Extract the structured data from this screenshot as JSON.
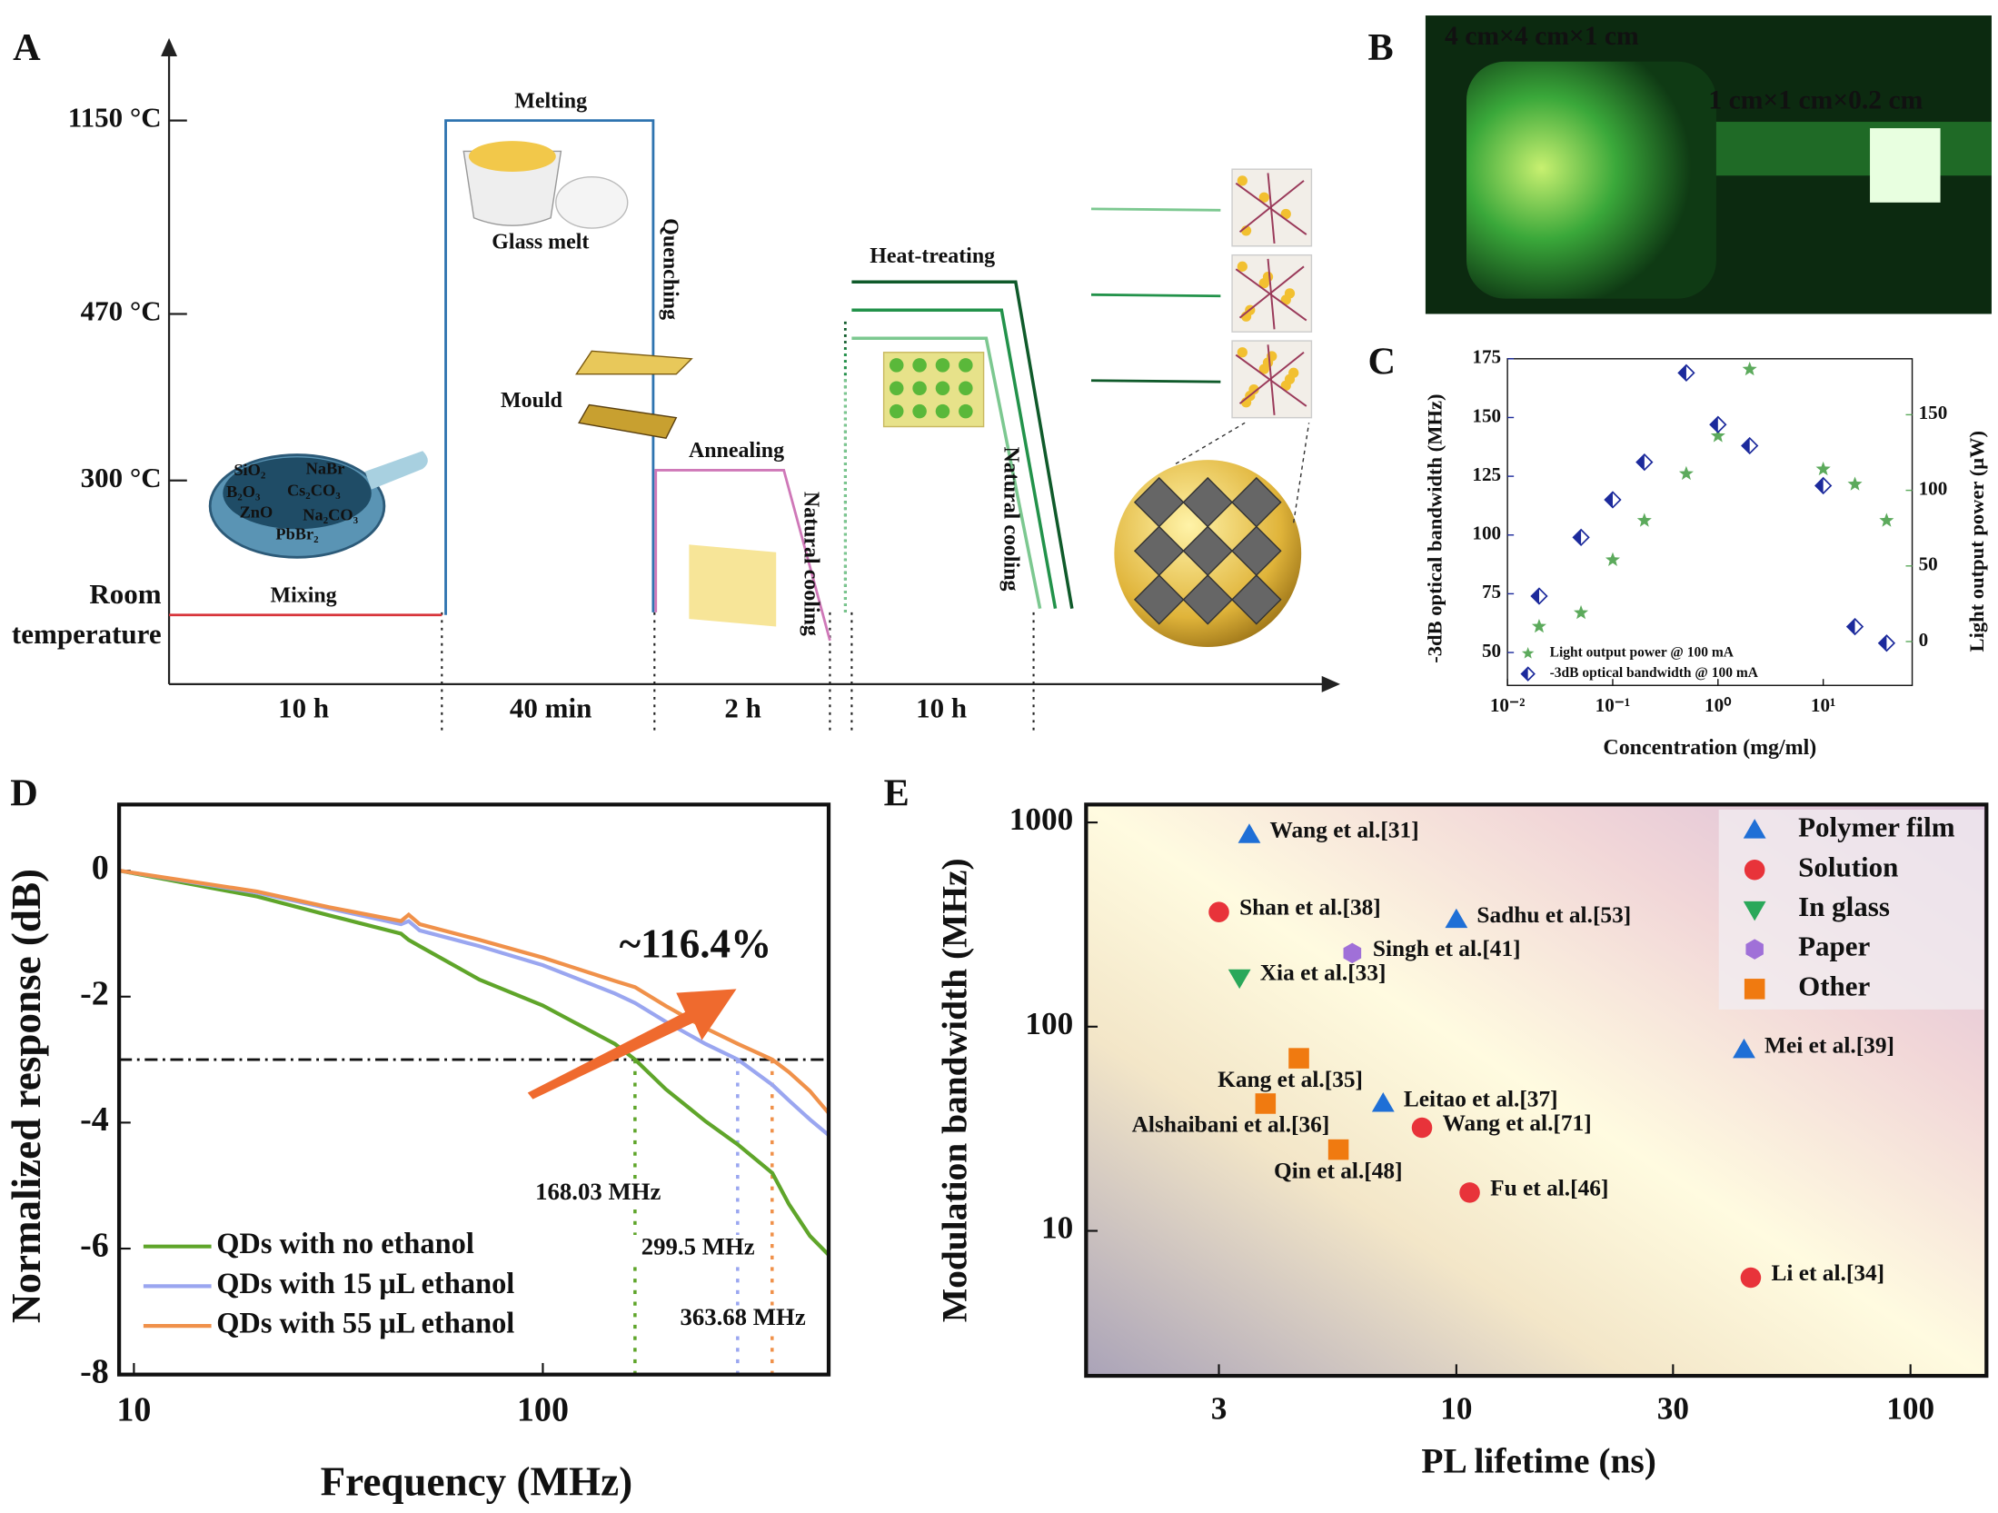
{
  "panel_a": {
    "label": "A",
    "temperatures": [
      "1150 °C",
      "470 °C",
      "300 °C"
    ],
    "room_temperature": [
      "Room",
      "temperature"
    ],
    "stages": [
      "Mixing",
      "Melting",
      "Glass melt",
      "Quenching",
      "Mould",
      "Annealing",
      "Natural cooling",
      "Heat-treating",
      "Natural cooling"
    ],
    "chemicals": [
      "SiO₂",
      "NaBr",
      "B₂O₃",
      "Cs₂CO₃",
      "ZnO",
      "Na₂CO₃",
      "PbBr₂"
    ],
    "times": [
      "10 h",
      "40 min",
      "2 h",
      "10 h"
    ]
  },
  "panel_b": {
    "label": "B",
    "sizes": [
      "4 cm×4 cm×1 cm",
      "1 cm×1 cm×0.2 cm"
    ]
  },
  "chart_data": [
    {
      "type": "scatter",
      "panel": "C",
      "xlabel": "Concentration (mg/ml)",
      "ylabel": "-3dB optical bandwidth (MHz)",
      "y2label": "Light output power (μW)",
      "xscale": "log",
      "x": [
        0.02,
        0.05,
        0.1,
        0.2,
        0.5,
        1,
        2,
        10,
        20,
        40
      ],
      "series": [
        {
          "name": "Light output power @ 100 mA",
          "color": "#5caa5c",
          "marker": "star",
          "axis": "y2",
          "values": [
            10,
            19,
            54,
            80,
            111,
            136,
            180,
            114,
            104,
            80
          ]
        },
        {
          "name": "-3dB optical bandwidth @ 100 mA",
          "color": "#1c2a9c",
          "marker": "half-diamond",
          "values": [
            74,
            99,
            115,
            131,
            169,
            147,
            138,
            121,
            61,
            54
          ]
        }
      ],
      "xlim": [
        0.01,
        70
      ],
      "xticks": [
        {
          "value": 0.01,
          "label": "10⁻²"
        },
        {
          "value": 0.1,
          "label": "10⁻¹"
        },
        {
          "value": 1,
          "label": "10⁰"
        },
        {
          "value": 10,
          "label": "10¹"
        }
      ],
      "ylim": [
        36,
        175
      ],
      "yticks": [
        50,
        75,
        100,
        125,
        150,
        175
      ],
      "y2lim": [
        -29,
        187
      ],
      "y2ticks": [
        0,
        50,
        100,
        150
      ]
    },
    {
      "type": "line",
      "panel": "D",
      "xlabel": "Frequency (MHz)",
      "ylabel": "Normalized response (dB)",
      "xscale": "log",
      "x": [
        9.2,
        20,
        30,
        45,
        47,
        50,
        70,
        100,
        150,
        168,
        200,
        250,
        300,
        364,
        400,
        450,
        500
      ],
      "series": [
        {
          "name": "QDs with no ethanol",
          "color": "#5fa52a",
          "values": [
            0,
            -0.41,
            -0.71,
            -1.0,
            -1.1,
            -1.2,
            -1.73,
            -2.14,
            -2.75,
            -3.0,
            -3.47,
            -3.98,
            -4.35,
            -4.8,
            -5.3,
            -5.8,
            -6.1
          ]
        },
        {
          "name": "QDs with 15 μL ethanol",
          "color": "#9aa6f0",
          "values": [
            0,
            -0.35,
            -0.6,
            -0.85,
            -0.8,
            -0.95,
            -1.2,
            -1.5,
            -1.95,
            -2.1,
            -2.4,
            -2.75,
            -3.0,
            -3.4,
            -3.65,
            -3.95,
            -4.2
          ]
        },
        {
          "name": "QDs with 55 μL ethanol",
          "color": "#f0914a",
          "values": [
            0,
            -0.33,
            -0.58,
            -0.8,
            -0.7,
            -0.85,
            -1.1,
            -1.38,
            -1.75,
            -1.85,
            -2.15,
            -2.5,
            -2.75,
            -3.0,
            -3.2,
            -3.5,
            -3.85
          ]
        }
      ],
      "reference_line": -3,
      "markers": [
        {
          "value": 168.03,
          "label": "168.03 MHz"
        },
        {
          "value": 299.5,
          "label": "299.5 MHz"
        },
        {
          "value": 363.68,
          "label": "363.68 MHz"
        }
      ],
      "annotation": "~116.4%",
      "xlim": [
        9.2,
        500
      ],
      "xticks": [
        10,
        100
      ],
      "ylim": [
        -8,
        1.05
      ],
      "yticks": [
        0,
        -2,
        -4,
        -6,
        -8
      ]
    },
    {
      "type": "scatter",
      "panel": "E",
      "xlabel": "PL lifetime (ns)",
      "ylabel": "Modulation bandwidth (MHz)",
      "xscale": "log",
      "yscale": "log",
      "series": [
        {
          "name": "Polymer film",
          "color": "#1f6fd6",
          "marker": "triangle",
          "x": [
            3.5,
            10,
            43,
            6.9
          ],
          "values": [
            870,
            334,
            77,
            42
          ],
          "labels": [
            "Wang et al.[31]",
            "Sadhu et al.[53]",
            "Mei et al.[39]",
            "Leitao et al.[37]"
          ]
        },
        {
          "name": "Solution",
          "color": "#e8333a",
          "marker": "circle",
          "x": [
            3.0,
            8.4,
            10.7,
            44.5
          ],
          "values": [
            364,
            32,
            15.4,
            5.9
          ],
          "labels": [
            "Shan et al.[38]",
            "Wang et al.[71]",
            "Fu et al.[46]",
            "Li et al.[34]"
          ]
        },
        {
          "name": "In glass",
          "color": "#2aa85a",
          "marker": "triangle-down",
          "x": [
            3.33
          ],
          "values": [
            174
          ],
          "labels": [
            "Xia et al.[33]"
          ]
        },
        {
          "name": "Paper",
          "color": "#a070d8",
          "marker": "hexagon",
          "x": [
            5.9
          ],
          "values": [
            229
          ],
          "labels": [
            "Singh et al.[41]"
          ]
        },
        {
          "name": "Other",
          "color": "#f07a10",
          "marker": "square",
          "x": [
            4.5,
            3.8,
            5.5
          ],
          "values": [
            70,
            42,
            25
          ],
          "labels": [
            "Kang et al.[35]",
            "Alshaibani et al.[36]",
            "Qin et al.[48]"
          ]
        }
      ],
      "xlim": [
        1.53,
        147
      ],
      "xticks": [
        3,
        10,
        30,
        100
      ],
      "ylim": [
        1.95,
        1224
      ],
      "yticks": [
        10,
        100,
        1000
      ]
    }
  ]
}
